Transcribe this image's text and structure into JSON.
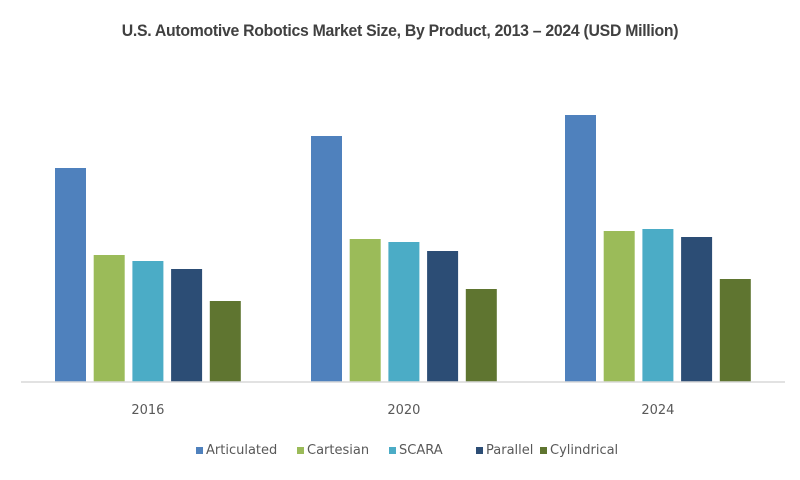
{
  "chart_data": {
    "type": "bar",
    "title": "U.S. Automotive Robotics Market Size, By Product, 2013 – 2024 (USD Million)",
    "xlabel": "",
    "ylabel": "",
    "y_axis_visible": false,
    "value_note": "No y-axis scale shown; values are relative bar heights (arbitrary units)",
    "ylim": [
      0,
      300
    ],
    "grid": false,
    "legend_position": "bottom",
    "categories": [
      "2016",
      "2020",
      "2024"
    ],
    "series": [
      {
        "name": "Articulated",
        "color": "#4f81bd",
        "values": [
          214,
          246,
          267
        ]
      },
      {
        "name": "Cartesian",
        "color": "#9bbb59",
        "values": [
          127,
          143,
          151
        ]
      },
      {
        "name": "SCARA",
        "color": "#4bacc6",
        "values": [
          121,
          140,
          153
        ]
      },
      {
        "name": "Parallel",
        "color": "#2c4d75",
        "values": [
          113,
          131,
          145
        ]
      },
      {
        "name": "Cylindrical",
        "color": "#5f7530",
        "values": [
          81,
          93,
          103
        ]
      }
    ]
  }
}
